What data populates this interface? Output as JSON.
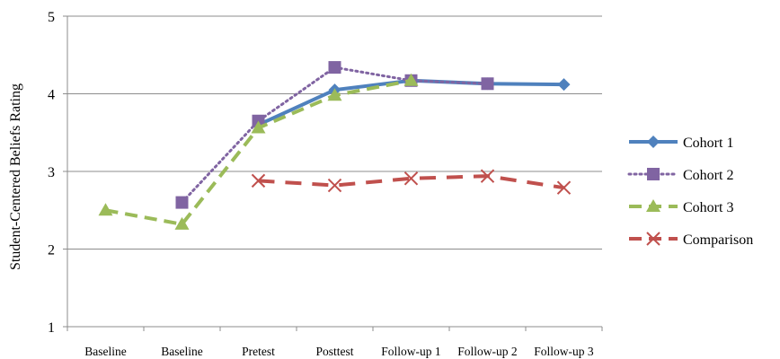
{
  "chart_data": {
    "type": "line",
    "title": "",
    "xlabel": "",
    "ylabel": "Student-Centered Beliefs Rating",
    "ylim": [
      1,
      5
    ],
    "yticks": [
      "1",
      "2",
      "3",
      "4",
      "5"
    ],
    "categories": [
      "Baseline",
      "Baseline",
      "Pretest",
      "Posttest",
      "Follow-up 1",
      "Follow-up 2",
      "Follow-up 3"
    ],
    "grid": true,
    "legend_position": "right",
    "series": [
      {
        "name": "Cohort 1",
        "color": "#4f81bd",
        "style": "solid",
        "marker": "diamond",
        "values": [
          null,
          null,
          3.6,
          4.05,
          4.17,
          4.13,
          4.12
        ]
      },
      {
        "name": "Cohort 2",
        "color": "#8064a2",
        "style": "dotted",
        "marker": "square",
        "values": [
          null,
          2.6,
          3.65,
          4.34,
          4.17,
          4.13,
          null
        ]
      },
      {
        "name": "Cohort 3",
        "color": "#9bbb59",
        "style": "dashed",
        "marker": "triangle",
        "values": [
          2.5,
          2.32,
          3.56,
          3.98,
          4.17,
          null,
          null
        ]
      },
      {
        "name": "Comparison",
        "color": "#c0504d",
        "style": "longdash",
        "marker": "x",
        "values": [
          null,
          null,
          2.88,
          2.82,
          2.91,
          2.94,
          2.79
        ]
      }
    ]
  }
}
